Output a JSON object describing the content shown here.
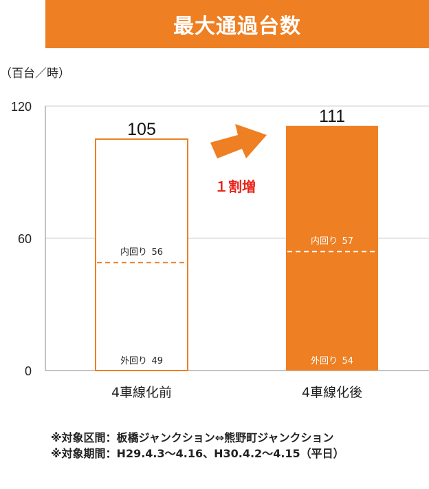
{
  "title": "最大通過台数",
  "unit_label": "（百台／時）",
  "change_label": "１割増",
  "notes": [
    "※対象区間：板橋ジャンクション⇔熊野町ジャンクション",
    "※対象期間：H29.4.3～4.16、H30.4.2～4.15（平日）"
  ],
  "colors": {
    "accent": "#ee7f22",
    "change_text": "#e8241a",
    "grid": "#cccccc",
    "axis": "#888888"
  },
  "chart_data": {
    "type": "bar",
    "categories": [
      "4車線化前",
      "4車線化後"
    ],
    "totals": [
      105,
      111
    ],
    "breakdown": [
      {
        "outer_label": "外回り",
        "outer": 49,
        "inner_label": "内回り",
        "inner": 56
      },
      {
        "outer_label": "外回り",
        "outer": 54,
        "inner_label": "内回り",
        "inner": 57
      }
    ],
    "bar_style": [
      "outline",
      "filled"
    ],
    "ylim": [
      0,
      120
    ],
    "yticks": [
      0,
      60,
      120
    ],
    "grid": true
  }
}
